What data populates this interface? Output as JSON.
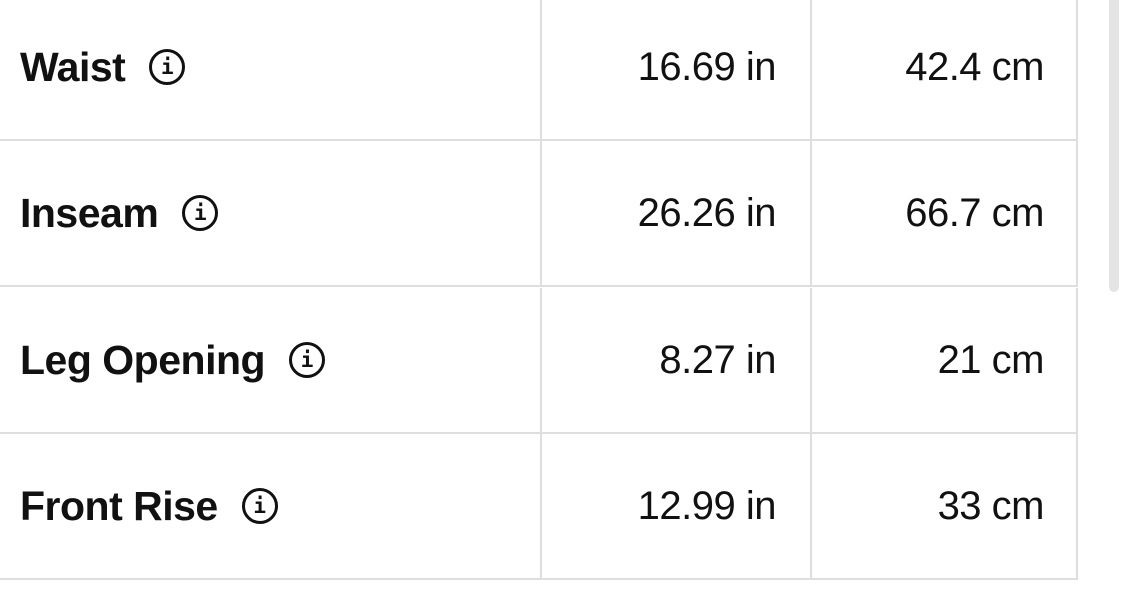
{
  "info_icon": "info-circle-icon",
  "rows": [
    {
      "label": "Waist",
      "inches": "16.69 in",
      "cm": "42.4 cm"
    },
    {
      "label": "Inseam",
      "inches": "26.26 in",
      "cm": "66.7 cm"
    },
    {
      "label": "Leg Opening",
      "inches": "8.27 in",
      "cm": "21 cm"
    },
    {
      "label": "Front Rise",
      "inches": "12.99 in",
      "cm": "33 cm"
    }
  ]
}
